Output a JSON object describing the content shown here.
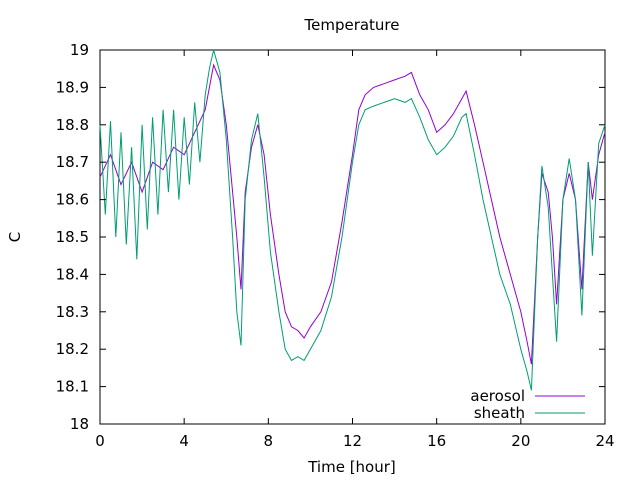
{
  "chart_data": {
    "type": "line",
    "title": "Temperature",
    "xlabel": "Time [hour]",
    "ylabel": "C",
    "xlim": [
      0,
      24
    ],
    "ylim": [
      18,
      19
    ],
    "xticks": [
      0,
      4,
      8,
      12,
      16,
      20,
      24
    ],
    "yticks": [
      18,
      18.1,
      18.2,
      18.3,
      18.4,
      18.5,
      18.6,
      18.7,
      18.8,
      18.9,
      19
    ],
    "grid": false,
    "legend": "bottom-right",
    "series": [
      {
        "name": "aerosol",
        "color": "#9400d3",
        "x": [
          0,
          0.5,
          1.0,
          1.5,
          2.0,
          2.5,
          3.0,
          3.5,
          4.0,
          4.5,
          5.0,
          5.2,
          5.4,
          5.7,
          6.0,
          6.3,
          6.5,
          6.7,
          6.9,
          7.2,
          7.5,
          7.8,
          8.1,
          8.5,
          8.8,
          9.1,
          9.4,
          9.7,
          10.0,
          10.5,
          11.0,
          11.5,
          12.0,
          12.3,
          12.6,
          13.0,
          13.5,
          14.0,
          14.5,
          14.8,
          15.2,
          15.6,
          16.0,
          16.4,
          16.8,
          17.2,
          17.4,
          17.8,
          18.2,
          18.6,
          19.0,
          19.5,
          20.0,
          20.3,
          20.5,
          20.8,
          21.0,
          21.3,
          21.5,
          21.7,
          22.0,
          22.3,
          22.6,
          22.9,
          23.2,
          23.4,
          23.7,
          24.0
        ],
        "values": [
          18.66,
          18.72,
          18.64,
          18.7,
          18.62,
          18.7,
          18.68,
          18.74,
          18.72,
          18.78,
          18.84,
          18.9,
          18.96,
          18.92,
          18.8,
          18.62,
          18.5,
          18.36,
          18.62,
          18.74,
          18.8,
          18.72,
          18.56,
          18.4,
          18.3,
          18.26,
          18.25,
          18.23,
          18.26,
          18.3,
          18.38,
          18.54,
          18.72,
          18.84,
          18.88,
          18.9,
          18.91,
          18.92,
          18.93,
          18.94,
          18.88,
          18.84,
          18.78,
          18.8,
          18.83,
          18.87,
          18.89,
          18.8,
          18.7,
          18.6,
          18.5,
          18.4,
          18.3,
          18.22,
          18.16,
          18.5,
          18.67,
          18.62,
          18.5,
          18.32,
          18.6,
          18.67,
          18.6,
          18.36,
          18.7,
          18.6,
          18.72,
          18.78
        ]
      },
      {
        "name": "sheath",
        "color": "#009e73",
        "x": [
          0,
          0.25,
          0.5,
          0.75,
          1.0,
          1.25,
          1.5,
          1.75,
          2.0,
          2.25,
          2.5,
          2.75,
          3.0,
          3.25,
          3.5,
          3.75,
          4.0,
          4.25,
          4.5,
          4.75,
          5.0,
          5.2,
          5.4,
          5.7,
          6.0,
          6.3,
          6.5,
          6.7,
          6.9,
          7.2,
          7.5,
          7.8,
          8.1,
          8.5,
          8.8,
          9.1,
          9.4,
          9.7,
          10.0,
          10.5,
          11.0,
          11.5,
          12.0,
          12.3,
          12.6,
          13.0,
          13.5,
          14.0,
          14.5,
          14.8,
          15.2,
          15.6,
          16.0,
          16.4,
          16.8,
          17.2,
          17.4,
          17.8,
          18.2,
          18.6,
          19.0,
          19.5,
          20.0,
          20.3,
          20.5,
          20.8,
          21.0,
          21.3,
          21.5,
          21.7,
          22.0,
          22.3,
          22.6,
          22.9,
          23.2,
          23.4,
          23.7,
          24.0
        ],
        "values": [
          18.8,
          18.56,
          18.81,
          18.5,
          18.78,
          18.48,
          18.74,
          18.44,
          18.8,
          18.52,
          18.82,
          18.56,
          18.84,
          18.62,
          18.84,
          18.6,
          18.82,
          18.64,
          18.86,
          18.7,
          18.88,
          18.95,
          19.0,
          18.94,
          18.76,
          18.5,
          18.3,
          18.21,
          18.6,
          18.76,
          18.83,
          18.66,
          18.46,
          18.3,
          18.2,
          18.17,
          18.18,
          18.17,
          18.2,
          18.25,
          18.34,
          18.5,
          18.7,
          18.8,
          18.84,
          18.85,
          18.86,
          18.87,
          18.86,
          18.87,
          18.82,
          18.76,
          18.72,
          18.74,
          18.77,
          18.82,
          18.83,
          18.72,
          18.6,
          18.5,
          18.4,
          18.32,
          18.2,
          18.14,
          18.09,
          18.5,
          18.69,
          18.58,
          18.4,
          18.22,
          18.6,
          18.71,
          18.6,
          18.29,
          18.7,
          18.45,
          18.75,
          18.8
        ]
      }
    ]
  }
}
